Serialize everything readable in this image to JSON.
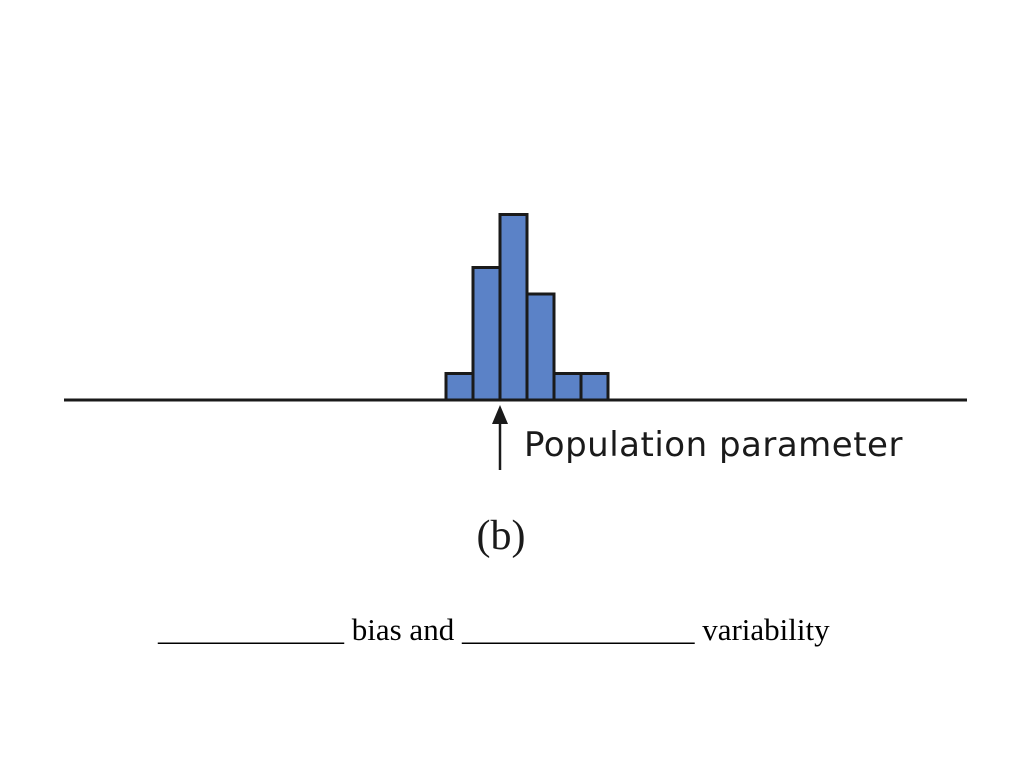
{
  "chart_data": {
    "type": "bar",
    "values": [
      1,
      5,
      7,
      4,
      1,
      1
    ],
    "annotation": "Population parameter",
    "parameter_index": 1,
    "bar_color": "#5b82c7"
  },
  "panel_label": "(b)",
  "caption": {
    "blank1": "____________",
    "text1": " bias and ",
    "blank2": "_______________",
    "text2": " variability"
  }
}
